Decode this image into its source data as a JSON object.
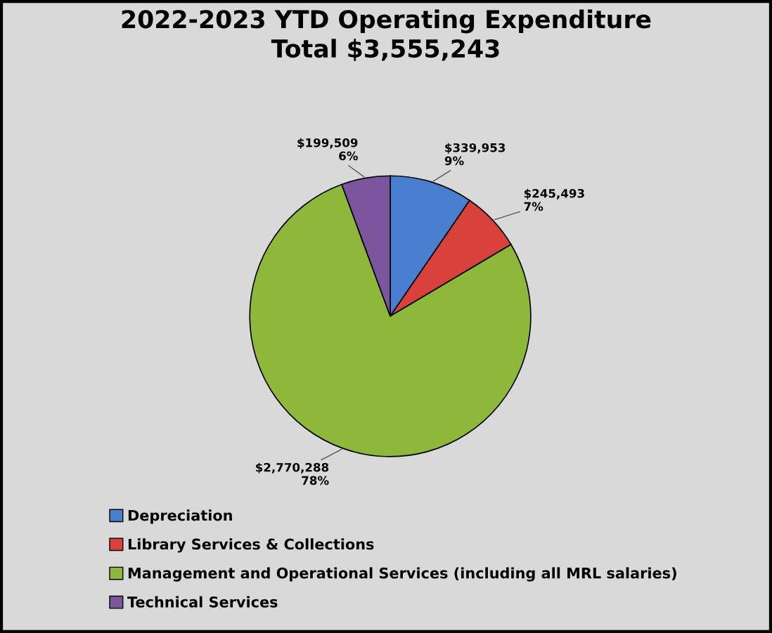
{
  "chart_data": {
    "type": "pie",
    "title": "2022-2023 YTD Operating Expenditure\nTotal $3,555,243",
    "categories": [
      "Depreciation",
      "Library Services & Collections",
      "Management and Operational Services (including all MRL salaries)",
      "Technical Services"
    ],
    "values": [
      339953,
      245493,
      2770288,
      199509
    ],
    "colors": [
      "#4a7fd0",
      "#d9413c",
      "#8db83a",
      "#7b559e"
    ],
    "value_labels": [
      "$339,953\n9%",
      "$245,493\n7%",
      "$2,770,288\n78%",
      "$199,509\n6%"
    ],
    "legend": "bottom left"
  }
}
